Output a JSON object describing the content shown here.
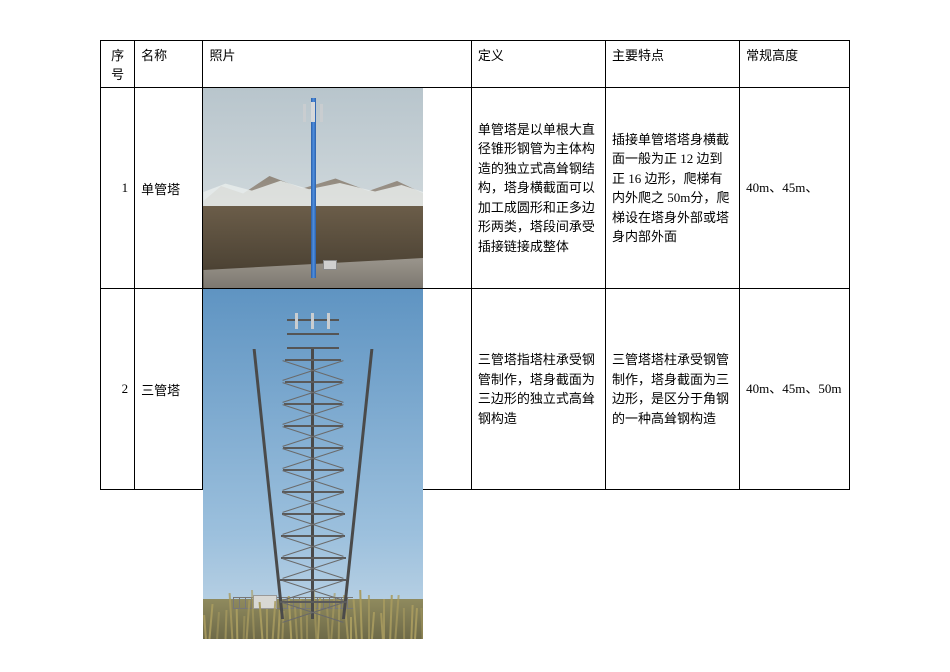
{
  "table": {
    "columns": [
      "序号",
      "名称",
      "照片",
      "定义",
      "主要特点",
      "常规高度"
    ],
    "rows": [
      {
        "seq": "1",
        "name": "单管塔",
        "definition": "单管塔是以单根大直径锥形钢管为主体构造的独立式高耸钢结构，塔身横截面可以加工成圆形和正多边形两类，塔段间承受插接链接成整体",
        "features": "插接单管塔塔身横截面一般为正 12 边到正\n16 边形，爬梯有内外爬之 50m分，爬梯设在塔身外部或塔身内部外面",
        "height": "40m、45m、"
      },
      {
        "seq": "2",
        "name": "三管塔",
        "definition": "三管塔指塔柱承受钢管制作，塔身截面为三边形的独立式高耸钢构造",
        "features": "三管塔塔柱承受钢管制作，塔身截面为三边形，是区分于角钢的一种高耸钢构造",
        "height": "40m、45m、50m"
      }
    ]
  },
  "style": {
    "border_color": "#000000",
    "font_family": "SimSun",
    "font_size_pt": 10,
    "img1_colors": {
      "sky": "#c6d0d5",
      "mountain": "#8a8176",
      "snow": "#e8eceb",
      "ground": "#5a4e3c",
      "pole": "#2a5fa8"
    },
    "img2_colors": {
      "sky": "#5f94c2",
      "ground": "#8f8a5e",
      "steel": "#4a4a4a",
      "reed": "#a89b5f"
    }
  }
}
